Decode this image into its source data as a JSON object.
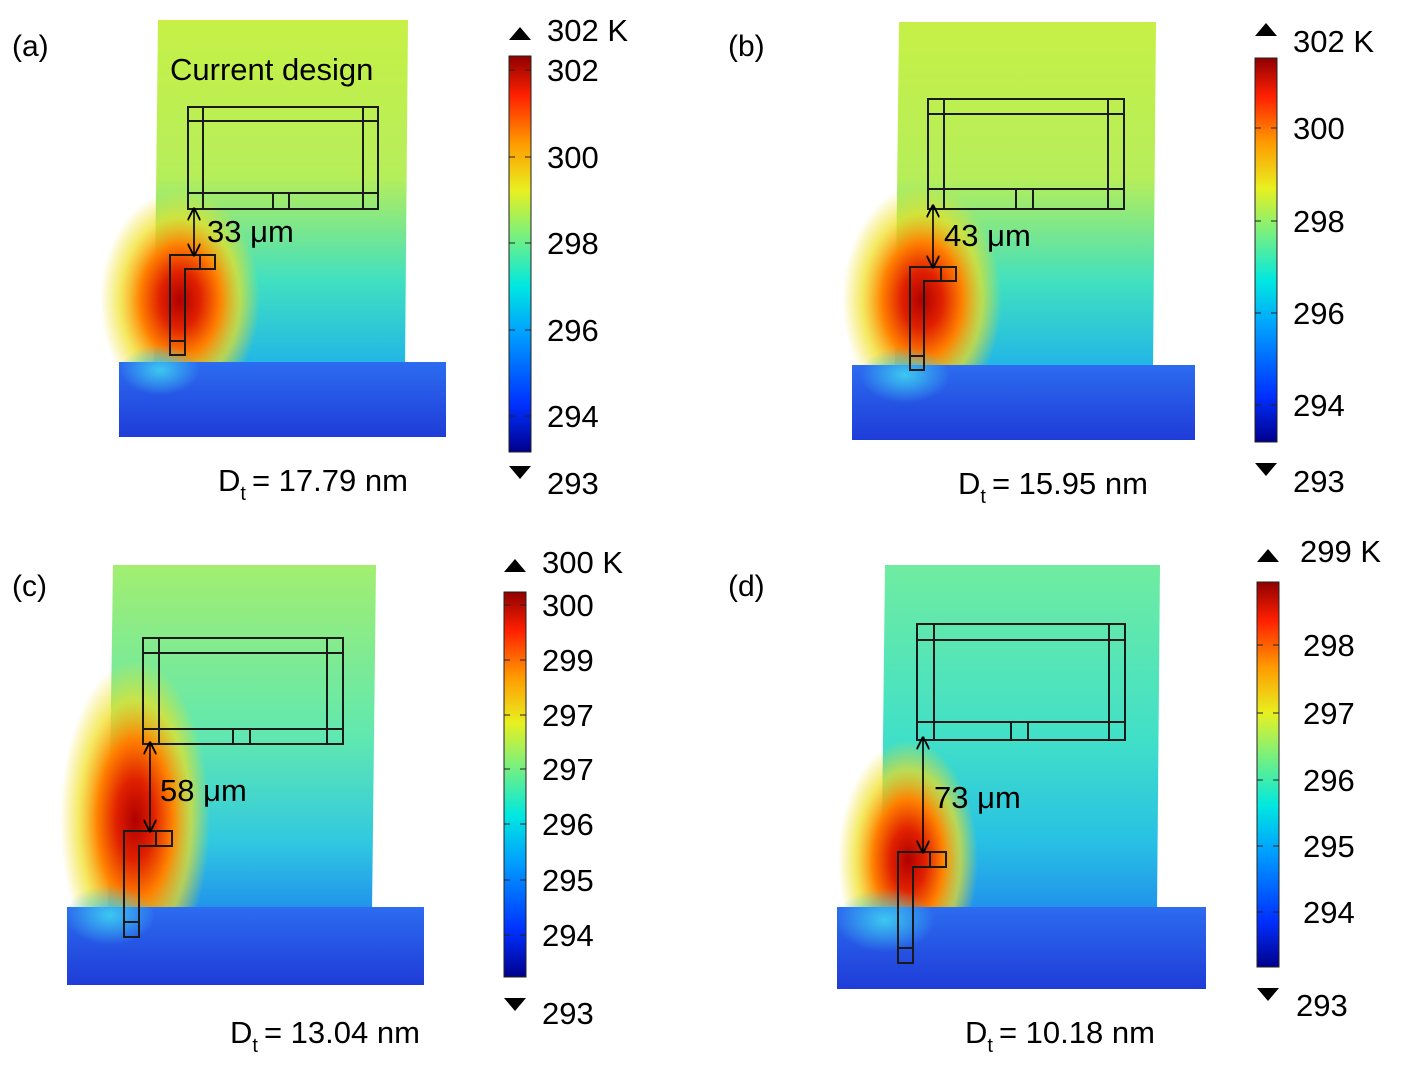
{
  "colors": {
    "cold": "#1a3fd6",
    "mid": "#00c8c8",
    "warm": "#c8f040",
    "hot": "#b00000"
  },
  "panels": [
    {
      "label": "(a)",
      "annotation": "Current design",
      "distance": "33 μm",
      "dt_symbol": "D",
      "dt_sub": "t",
      "dt_value": "= 17.79 nm",
      "colorbar": {
        "max_label": "302 K",
        "ticks": [
          "302",
          "300",
          "298",
          "296",
          "294"
        ],
        "min_label": "293"
      }
    },
    {
      "label": "(b)",
      "annotation": "",
      "distance": "43 μm",
      "dt_symbol": "D",
      "dt_sub": "t",
      "dt_value": "= 15.95 nm",
      "colorbar": {
        "max_label": "302 K",
        "ticks": [
          "300",
          "298",
          "296",
          "294"
        ],
        "min_label": "293"
      }
    },
    {
      "label": "(c)",
      "annotation": "",
      "distance": "58 μm",
      "dt_symbol": "D",
      "dt_sub": "t",
      "dt_value": "= 13.04 nm",
      "colorbar": {
        "max_label": "300 K",
        "ticks": [
          "300",
          "299",
          "297",
          "297",
          "296",
          "295",
          "294"
        ],
        "min_label": "293"
      }
    },
    {
      "label": "(d)",
      "annotation": "",
      "distance": "73 μm",
      "dt_symbol": "D",
      "dt_sub": "t",
      "dt_value": "= 10.18 nm",
      "colorbar": {
        "max_label": "299 K",
        "ticks": [
          "298",
          "297",
          "296",
          "295",
          "294"
        ],
        "min_label": "293"
      }
    }
  ]
}
